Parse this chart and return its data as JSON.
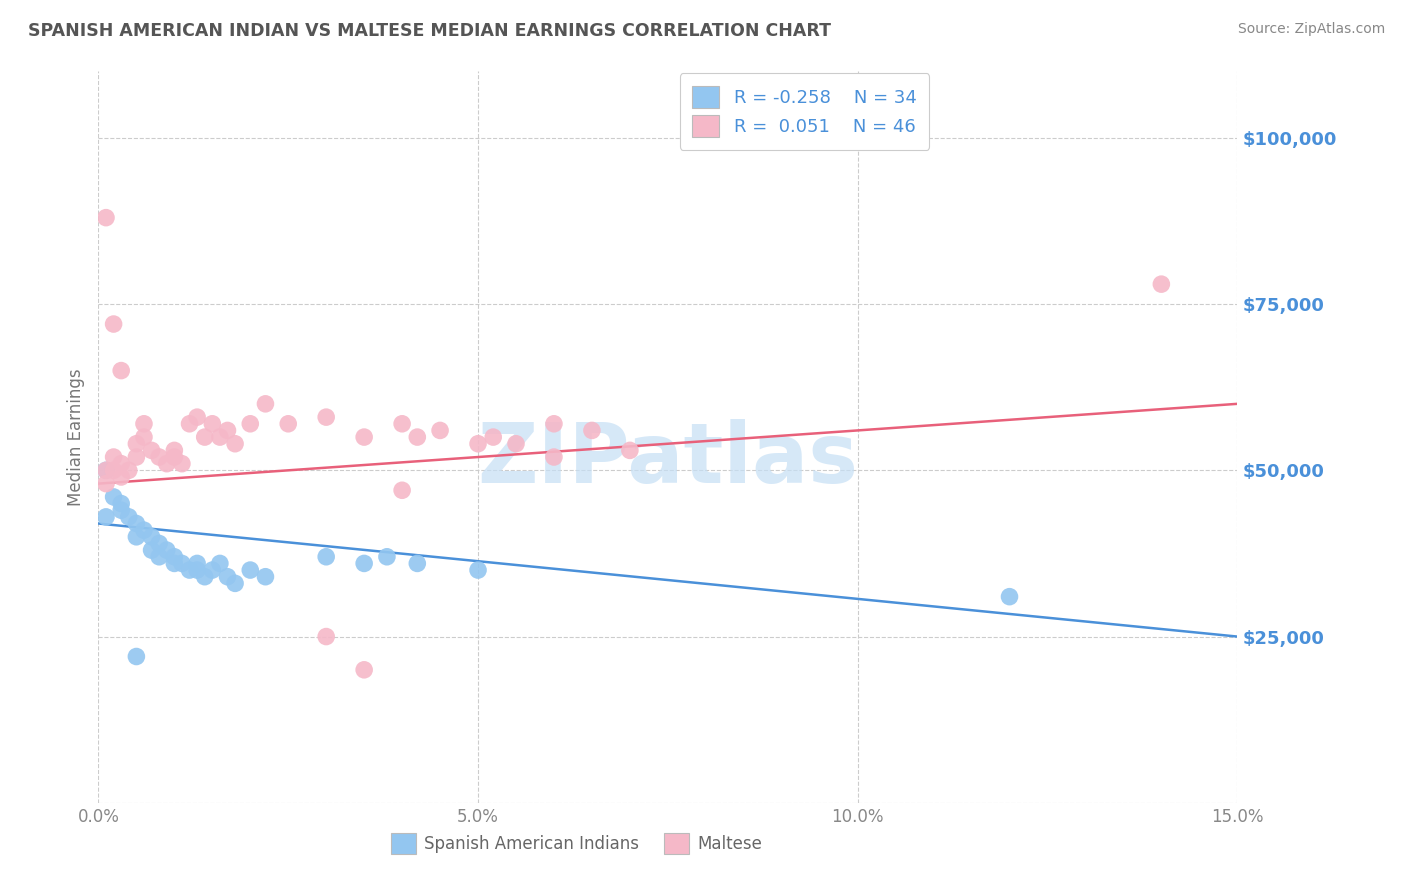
{
  "title": "SPANISH AMERICAN INDIAN VS MALTESE MEDIAN EARNINGS CORRELATION CHART",
  "source": "Source: ZipAtlas.com",
  "ylabel": "Median Earnings",
  "xlim": [
    0.0,
    0.15
  ],
  "ylim": [
    0,
    110000
  ],
  "yticks": [
    0,
    25000,
    50000,
    75000,
    100000
  ],
  "ytick_labels": [
    "",
    "$25,000",
    "$50,000",
    "$75,000",
    "$100,000"
  ],
  "xticks": [
    0.0,
    0.05,
    0.1,
    0.15
  ],
  "xtick_labels": [
    "0.0%",
    "5.0%",
    "10.0%",
    "15.0%"
  ],
  "blue_color": "#93c6f0",
  "pink_color": "#f5b8c8",
  "blue_line_color": "#4a90d9",
  "pink_line_color": "#e8607a",
  "title_color": "#555555",
  "axis_label_color": "#4a90d9",
  "watermark_color": "#c5dff5",
  "watermark_text": "ZIPatlas",
  "legend_r_blue": "-0.258",
  "legend_n_blue": "34",
  "legend_r_pink": "0.051",
  "legend_n_pink": "46",
  "legend_label_blue": "Spanish American Indians",
  "legend_label_pink": "Maltese",
  "blue_line_x0": 0.0,
  "blue_line_y0": 42000,
  "blue_line_x1": 0.15,
  "blue_line_y1": 25000,
  "pink_line_x0": 0.0,
  "pink_line_y0": 48000,
  "pink_line_x1": 0.15,
  "pink_line_y1": 60000,
  "blue_scatter_x": [
    0.001,
    0.001,
    0.002,
    0.003,
    0.003,
    0.004,
    0.005,
    0.005,
    0.006,
    0.007,
    0.007,
    0.008,
    0.008,
    0.009,
    0.01,
    0.01,
    0.011,
    0.012,
    0.013,
    0.013,
    0.014,
    0.015,
    0.016,
    0.017,
    0.018,
    0.02,
    0.022,
    0.03,
    0.035,
    0.038,
    0.042,
    0.05,
    0.12,
    0.005
  ],
  "blue_scatter_y": [
    50000,
    43000,
    46000,
    45000,
    44000,
    43000,
    42000,
    40000,
    41000,
    40000,
    38000,
    39000,
    37000,
    38000,
    37000,
    36000,
    36000,
    35000,
    36000,
    35000,
    34000,
    35000,
    36000,
    34000,
    33000,
    35000,
    34000,
    37000,
    36000,
    37000,
    36000,
    35000,
    31000,
    22000
  ],
  "pink_scatter_x": [
    0.001,
    0.001,
    0.002,
    0.002,
    0.003,
    0.003,
    0.004,
    0.005,
    0.005,
    0.006,
    0.006,
    0.007,
    0.008,
    0.009,
    0.01,
    0.01,
    0.011,
    0.012,
    0.013,
    0.014,
    0.015,
    0.016,
    0.017,
    0.018,
    0.02,
    0.022,
    0.025,
    0.03,
    0.035,
    0.04,
    0.042,
    0.045,
    0.05,
    0.052,
    0.055,
    0.06,
    0.065,
    0.07,
    0.04,
    0.06,
    0.001,
    0.002,
    0.003,
    0.035,
    0.14,
    0.03
  ],
  "pink_scatter_y": [
    50000,
    48000,
    52000,
    50000,
    51000,
    49000,
    50000,
    54000,
    52000,
    57000,
    55000,
    53000,
    52000,
    51000,
    53000,
    52000,
    51000,
    57000,
    58000,
    55000,
    57000,
    55000,
    56000,
    54000,
    57000,
    60000,
    57000,
    58000,
    55000,
    57000,
    55000,
    56000,
    54000,
    55000,
    54000,
    57000,
    56000,
    53000,
    47000,
    52000,
    88000,
    72000,
    65000,
    20000,
    78000,
    25000
  ]
}
